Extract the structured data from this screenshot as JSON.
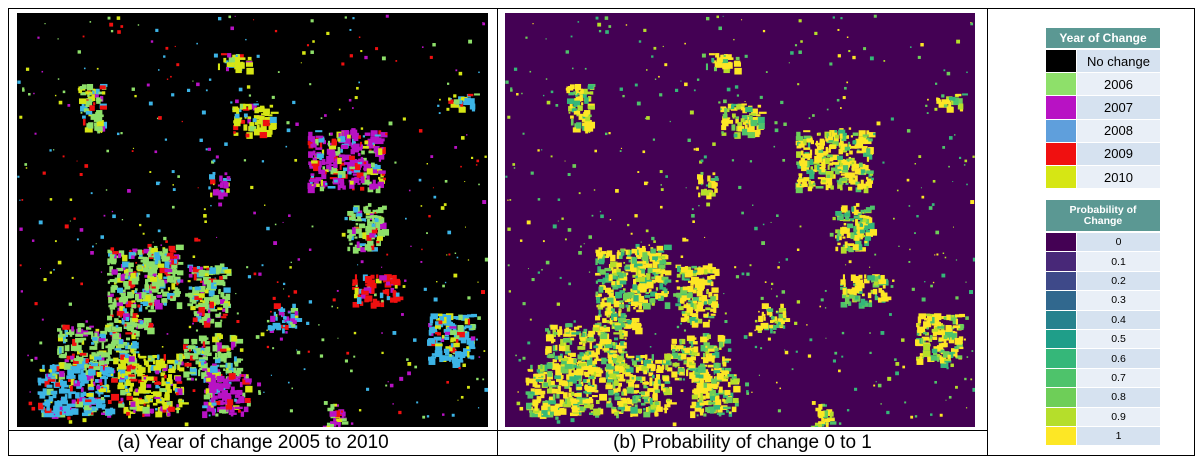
{
  "captions": [
    "(a) Year of change 2005 to 2010",
    "(b) Probability of change 0 to 1"
  ],
  "legends": [
    {
      "title": "Year of Change",
      "items": [
        {
          "label": "No change",
          "color": "#000000"
        },
        {
          "label": "2006",
          "color": "#8ee06a"
        },
        {
          "label": "2007",
          "color": "#b812c4"
        },
        {
          "label": "2008",
          "color": "#5f9fdc"
        },
        {
          "label": "2009",
          "color": "#f01010"
        },
        {
          "label": "2010",
          "color": "#d6e614"
        }
      ]
    },
    {
      "title": "Probability of Change",
      "items": [
        {
          "label": "0",
          "color": "#440154"
        },
        {
          "label": "0.1",
          "color": "#482878"
        },
        {
          "label": "0.2",
          "color": "#3e4989"
        },
        {
          "label": "0.3",
          "color": "#31688e"
        },
        {
          "label": "0.4",
          "color": "#26828e"
        },
        {
          "label": "0.5",
          "color": "#1f9e89"
        },
        {
          "label": "0.6",
          "color": "#35b779"
        },
        {
          "label": "0.7",
          "color": "#4ec36b"
        },
        {
          "label": "0.8",
          "color": "#6ece58"
        },
        {
          "label": "0.9",
          "color": "#b5de2b"
        },
        {
          "label": "1",
          "color": "#fde725"
        }
      ]
    }
  ]
}
